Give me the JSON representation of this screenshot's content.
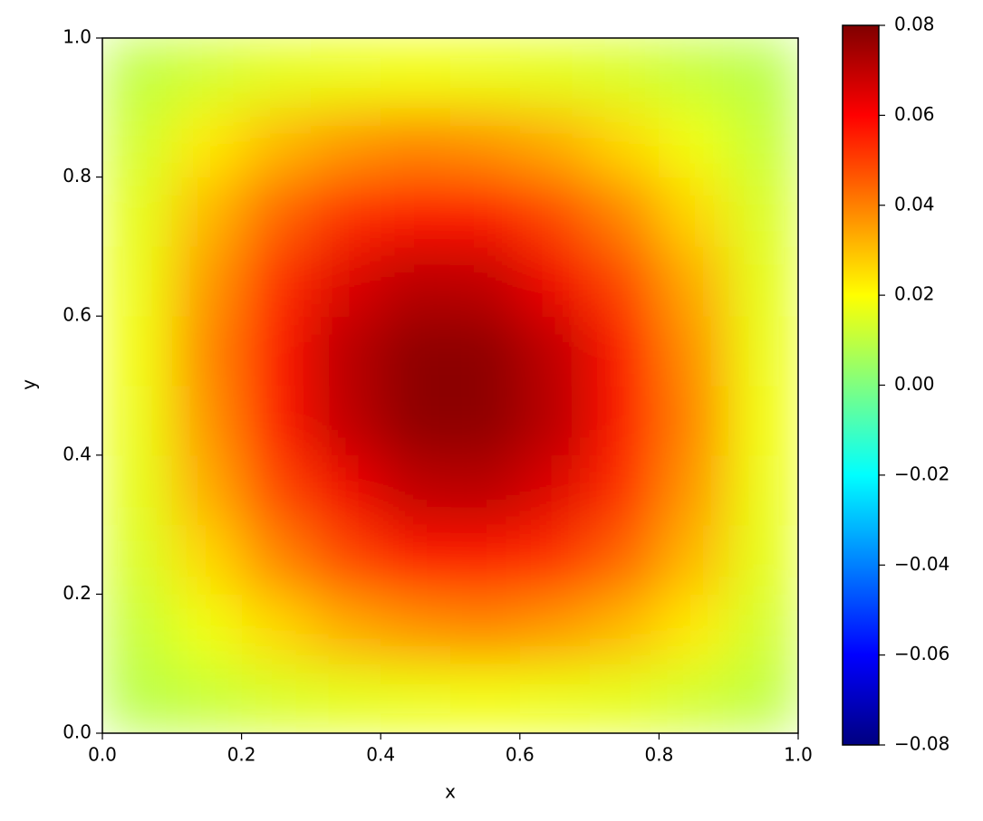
{
  "chart_data": {
    "type": "heatmap",
    "xlabel": "x",
    "ylabel": "y",
    "colormap": "jet",
    "x": [
      0.05,
      0.15,
      0.25,
      0.35,
      0.45,
      0.55,
      0.65,
      0.75,
      0.85,
      0.95
    ],
    "y": [
      0.05,
      0.15,
      0.25,
      0.35,
      0.45,
      0.55,
      0.65,
      0.75,
      0.85,
      0.95
    ],
    "values": [
      [
        0.009,
        0.011,
        0.014,
        0.016,
        0.017,
        0.018,
        0.017,
        0.016,
        0.013,
        0.01
      ],
      [
        0.011,
        0.018,
        0.026,
        0.033,
        0.037,
        0.039,
        0.036,
        0.031,
        0.023,
        0.013
      ],
      [
        0.014,
        0.026,
        0.039,
        0.049,
        0.056,
        0.057,
        0.053,
        0.044,
        0.031,
        0.016
      ],
      [
        0.016,
        0.033,
        0.049,
        0.062,
        0.07,
        0.071,
        0.065,
        0.053,
        0.036,
        0.017
      ],
      [
        0.017,
        0.037,
        0.056,
        0.07,
        0.078,
        0.078,
        0.071,
        0.057,
        0.039,
        0.018
      ],
      [
        0.018,
        0.039,
        0.057,
        0.071,
        0.078,
        0.078,
        0.07,
        0.056,
        0.037,
        0.017
      ],
      [
        0.017,
        0.036,
        0.053,
        0.065,
        0.071,
        0.07,
        0.062,
        0.049,
        0.033,
        0.016
      ],
      [
        0.016,
        0.031,
        0.044,
        0.053,
        0.057,
        0.056,
        0.049,
        0.039,
        0.026,
        0.014
      ],
      [
        0.013,
        0.023,
        0.031,
        0.036,
        0.039,
        0.037,
        0.033,
        0.026,
        0.018,
        0.011
      ],
      [
        0.01,
        0.013,
        0.016,
        0.017,
        0.018,
        0.017,
        0.016,
        0.014,
        0.011,
        0.009
      ]
    ],
    "xlim": [
      0,
      1
    ],
    "ylim": [
      0,
      1
    ],
    "xticks": [
      {
        "value": 0,
        "label": "0.0"
      },
      0.2,
      0.4,
      0.6,
      0.8,
      {
        "value": 1,
        "label": "1.0"
      }
    ],
    "yticks": [
      {
        "value": 0,
        "label": "0.0"
      },
      0.2,
      0.4,
      0.6,
      0.8,
      {
        "value": 1,
        "label": "1.0"
      }
    ],
    "clim": [
      -0.08,
      0.08
    ],
    "cticks": [
      {
        "value": -0.08,
        "label": "−0.08"
      },
      {
        "value": -0.06,
        "label": "−0.06"
      },
      {
        "value": -0.04,
        "label": "−0.04"
      },
      {
        "value": -0.02,
        "label": "−0.02"
      },
      {
        "value": 0,
        "label": "0.00"
      },
      0.02,
      0.04,
      0.06,
      0.08
    ]
  }
}
